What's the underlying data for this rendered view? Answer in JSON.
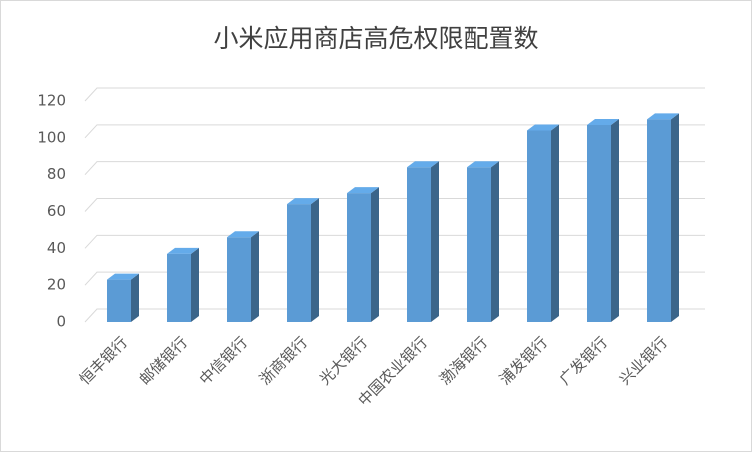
{
  "chart_data": {
    "type": "bar3d",
    "title": "小米应用商店高危权限配置数",
    "categories": [
      "恒丰银行",
      "邮储银行",
      "中信银行",
      "浙商银行",
      "光大银行",
      "中国农业银行",
      "渤海银行",
      "浦发银行",
      "广发银行",
      "兴业银行"
    ],
    "values": [
      23,
      37,
      46,
      64,
      70,
      84,
      84,
      104,
      107,
      110
    ],
    "color": "#5b9bd5",
    "ylim": [
      0,
      120
    ],
    "yticks": [
      0,
      20,
      40,
      60,
      80,
      100,
      120
    ],
    "grid": true
  }
}
